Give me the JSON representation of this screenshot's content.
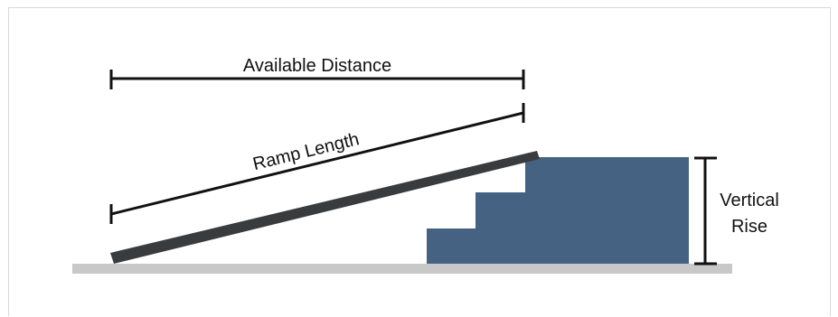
{
  "diagram": {
    "labels": {
      "available_distance": "Available Distance",
      "ramp_length": "Ramp Length",
      "vertical_rise_line1": "Vertical",
      "vertical_rise_line2": "Rise"
    },
    "colors": {
      "ramp": "#3a3b3d",
      "steps": "#466283",
      "ground": "#c8c8c8",
      "dimension_lines": "#111111",
      "frame": "#d9d9d9"
    }
  }
}
